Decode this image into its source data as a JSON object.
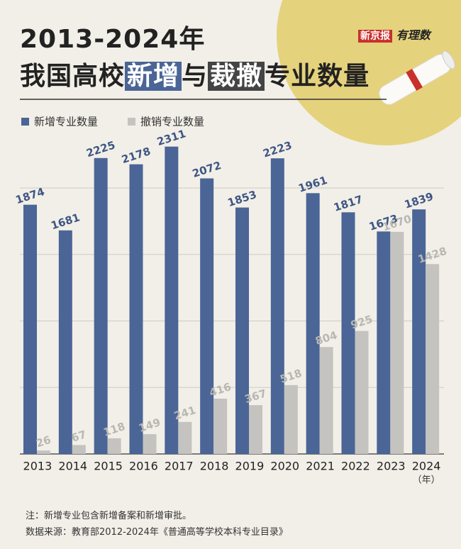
{
  "chart_data": {
    "type": "bar",
    "title_line1": "2013-2024年",
    "title_line2": [
      "我国高校",
      "新增",
      "与",
      "裁撤",
      "专业数量"
    ],
    "brand": [
      "新京报",
      "有理数"
    ],
    "categories": [
      "2013",
      "2014",
      "2015",
      "2016",
      "2017",
      "2018",
      "2019",
      "2020",
      "2021",
      "2022",
      "2023",
      "2024"
    ],
    "series": [
      {
        "name": "新增专业数量",
        "color": "#4a6596",
        "values": [
          1874,
          1681,
          2225,
          2178,
          2311,
          2072,
          1853,
          2223,
          1961,
          1817,
          1673,
          1839
        ]
      },
      {
        "name": "撤销专业数量",
        "color": "#c4c3bf",
        "values": [
          26,
          67,
          118,
          149,
          241,
          416,
          367,
          518,
          804,
          925,
          1670,
          1428
        ]
      }
    ],
    "ylim": [
      0,
      2400
    ],
    "yticks": [
      0,
      500,
      1000,
      1500,
      2000
    ],
    "grid": true,
    "x_unit": "（年）",
    "notes": [
      "注：新增专业包含新增备案和新增审批。",
      "数据来源：教育部2012-2024年《普通高等学校本科专业目录》"
    ]
  }
}
